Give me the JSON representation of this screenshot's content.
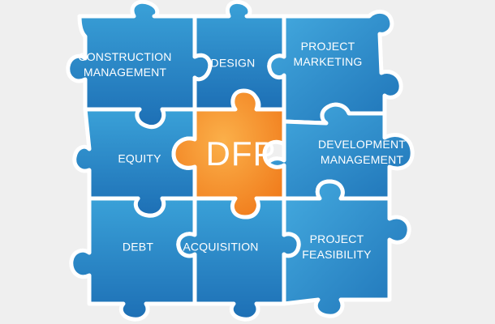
{
  "colors": {
    "background": "#efefef",
    "piece_blue_light": "#3aa1d8",
    "piece_blue_dark": "#1d6fb5",
    "center_orange_light": "#fbb04a",
    "center_orange_dark": "#f07a1a",
    "text": "#ffffff"
  },
  "center": {
    "label": "DFP"
  },
  "pieces": {
    "construction_management": {
      "line1": "CONSTRUCTION",
      "line2": "MANAGEMENT"
    },
    "design": {
      "line1": "DESIGN"
    },
    "project_marketing": {
      "line1": "PROJECT",
      "line2": "MARKETING"
    },
    "equity": {
      "line1": "EQUITY"
    },
    "development_management": {
      "line1": "DEVELOPMENT",
      "line2": "MANAGEMENT"
    },
    "debt": {
      "line1": "DEBT"
    },
    "acquisition": {
      "line1": "ACQUISITION"
    },
    "project_feasibility": {
      "line1": "PROJECT",
      "line2": "FEASIBILITY"
    }
  }
}
